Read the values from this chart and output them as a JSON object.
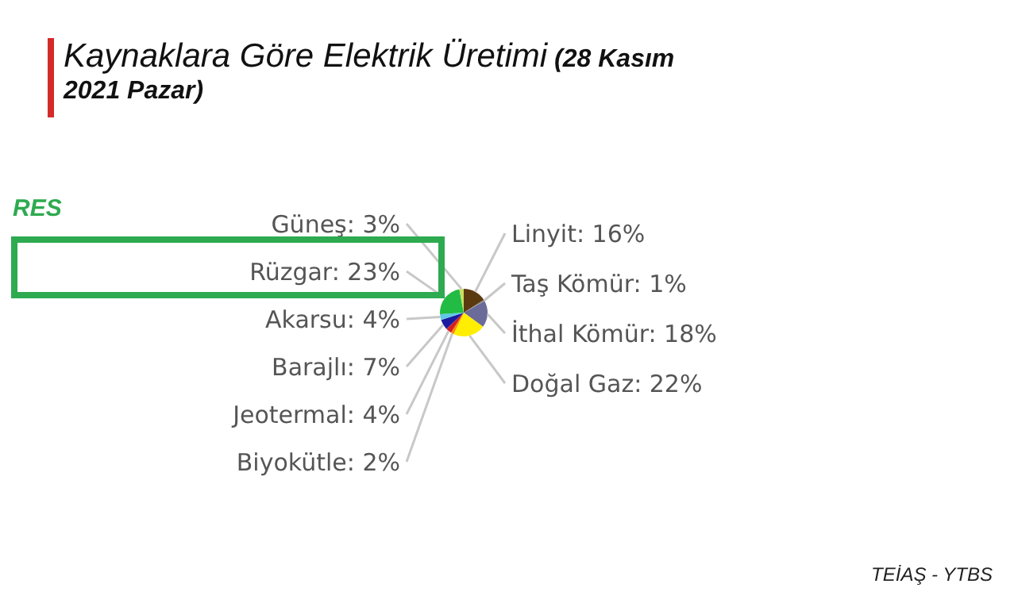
{
  "chart_data": {
    "type": "pie",
    "title": "Kaynaklara Göre Elektrik Üretimi",
    "subtitle": "(28 Kasım 2021 Pazar)",
    "categories": [
      "Linyit",
      "Taş Kömür",
      "İthal Kömür",
      "Doğal Gaz",
      "Biyokütle",
      "Jeotermal",
      "Barajlı",
      "Akarsu",
      "Rüzgar",
      "Güneş"
    ],
    "values": [
      16,
      1,
      18,
      22,
      2,
      4,
      7,
      4,
      23,
      3
    ],
    "value_labels": [
      "16%",
      "1%",
      "18%",
      "22%",
      "2%",
      "4%",
      "7%",
      "4%",
      "23%",
      "3%"
    ],
    "colors": [
      "#5c3a10",
      "#8a8a8a",
      "#6b6b9a",
      "#ffee00",
      "#ff8c00",
      "#d42020",
      "#1a1aa0",
      "#5fc8e8",
      "#22bb44",
      "#c8e060"
    ],
    "annotations": [
      "RES",
      "TEİAŞ - YTBS"
    ],
    "legend": false
  }
}
